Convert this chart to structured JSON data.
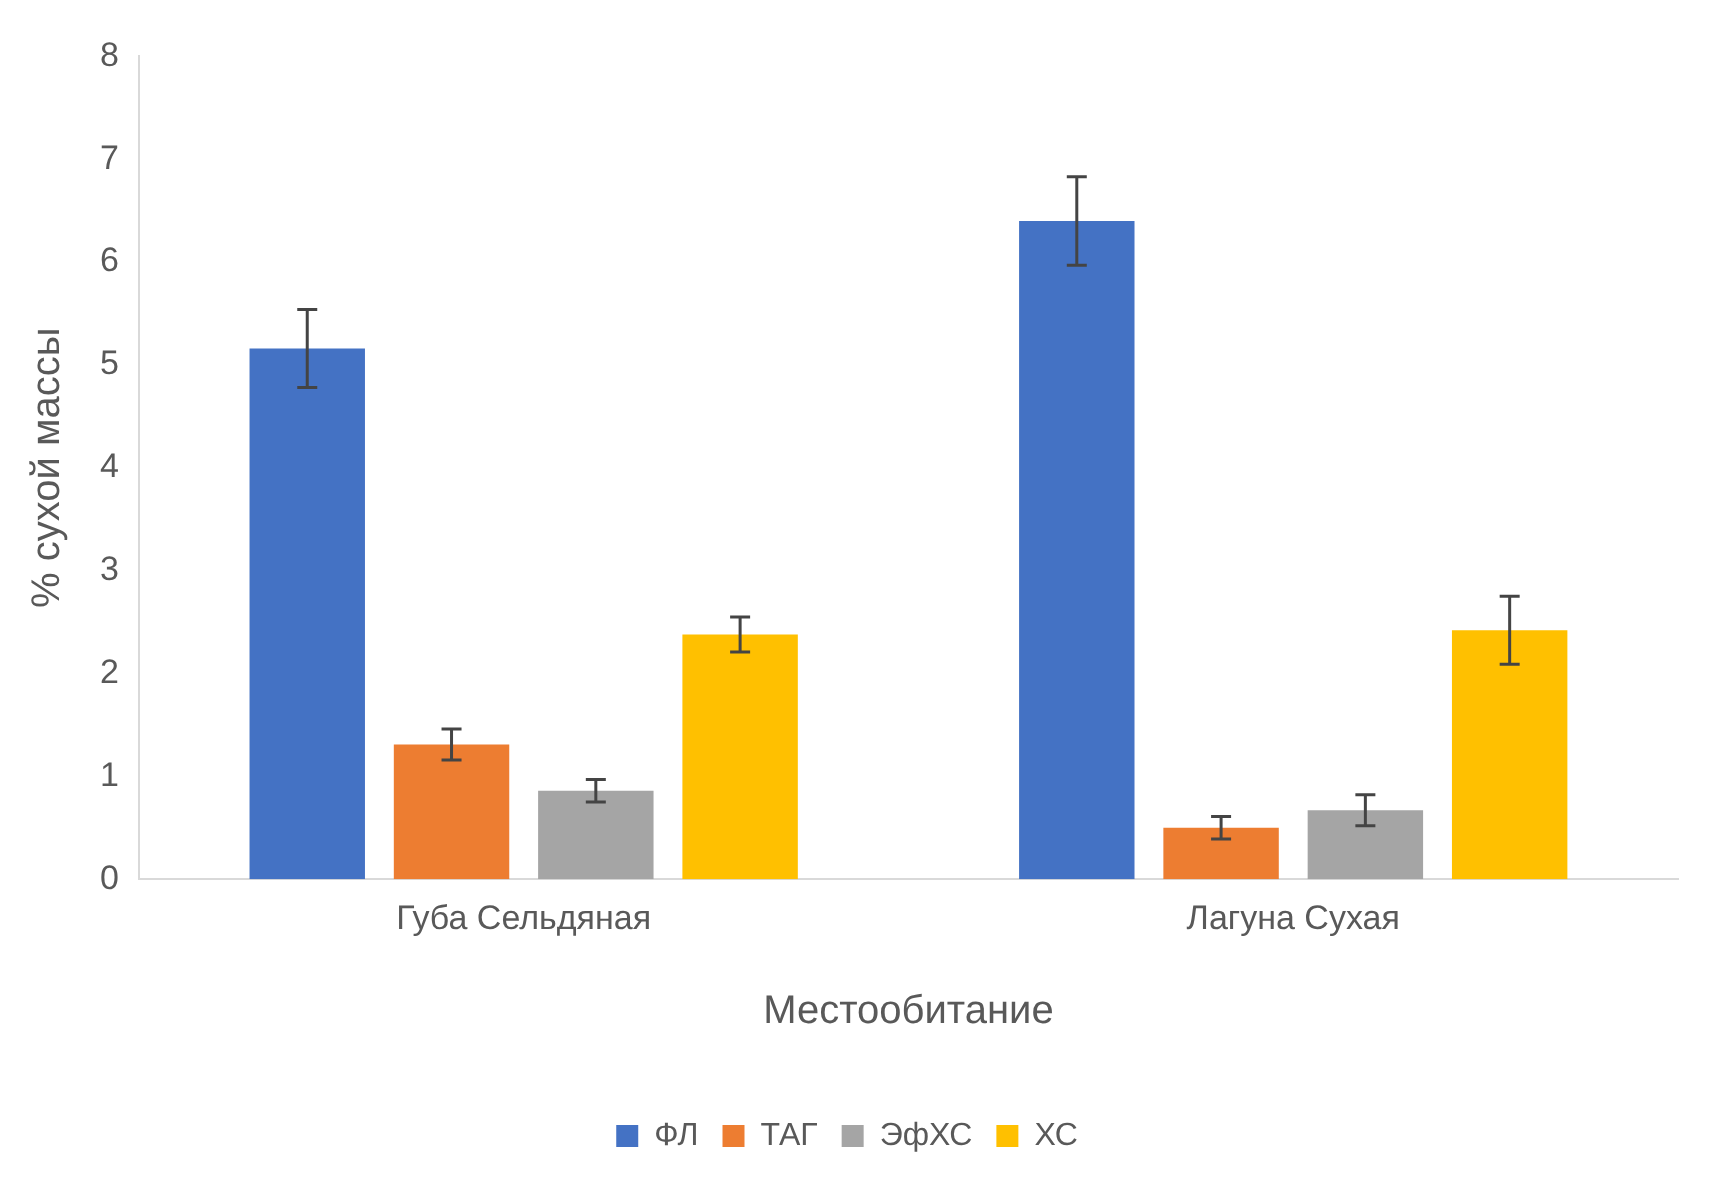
{
  "chart_data": {
    "type": "bar",
    "xlabel": "Местообитание",
    "ylabel": "% сухой массы",
    "categories": [
      "Губа Сельдяная",
      "Лагуна Сухая"
    ],
    "series": [
      {
        "name": "ФЛ",
        "color": "#4472c4",
        "values": [
          5.16,
          6.4
        ],
        "errors": [
          0.38,
          0.43
        ]
      },
      {
        "name": "ТАГ",
        "color": "#ed7d31",
        "values": [
          1.31,
          0.5
        ],
        "errors": [
          0.15,
          0.11
        ]
      },
      {
        "name": "ЭфХС",
        "color": "#a5a5a5",
        "values": [
          0.86,
          0.67
        ],
        "errors": [
          0.11,
          0.15
        ]
      },
      {
        "name": "ХС",
        "color": "#ffc000",
        "values": [
          2.38,
          2.42
        ],
        "errors": [
          0.17,
          0.33
        ]
      }
    ],
    "ylim": [
      0,
      8
    ],
    "yticks": [
      0,
      1,
      2,
      3,
      4,
      5,
      6,
      7,
      8
    ],
    "grid": false,
    "legend": "bottom"
  }
}
